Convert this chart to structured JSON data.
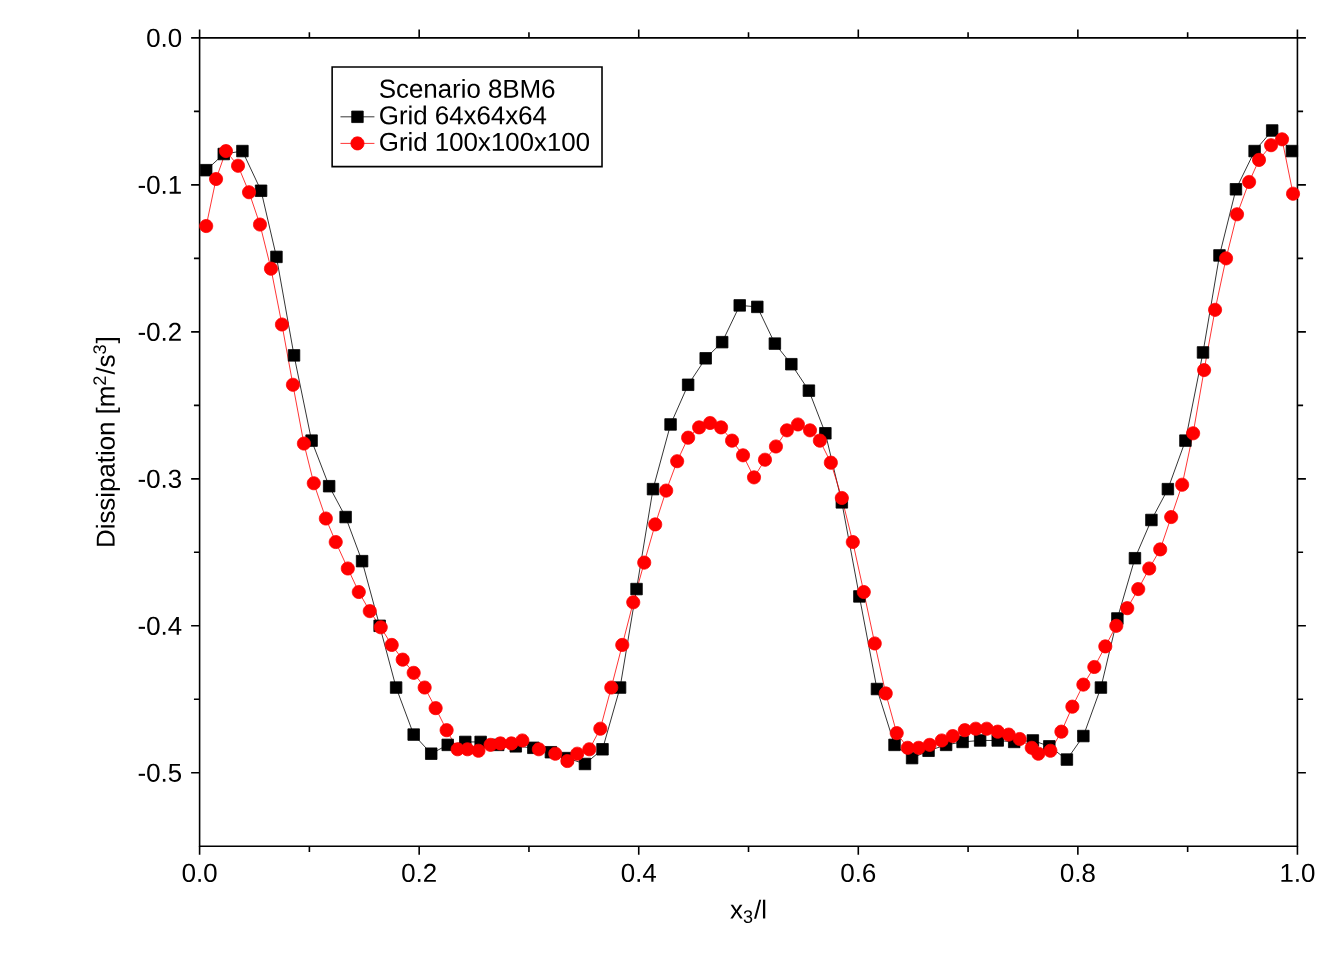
{
  "chart_data": {
    "type": "line",
    "xlabel": "x$_{3}$/l",
    "ylabel": "Dissipation [m$^{2}$/s$^{3}$]",
    "legend_title": "Scenario 8BM6",
    "legend": "top left",
    "grid": false,
    "xlim": [
      0,
      1
    ],
    "ylim": [
      -0.55,
      0
    ],
    "xticks": [
      {
        "value": 0,
        "label": "0.0"
      },
      {
        "value": 0.2,
        "label": "0.2"
      },
      {
        "value": 0.4,
        "label": "0.4"
      },
      {
        "value": 0.6,
        "label": "0.6"
      },
      {
        "value": 0.8,
        "label": "0.8"
      },
      {
        "value": 1,
        "label": "1.0"
      }
    ],
    "yticks": [
      {
        "value": -0.5,
        "label": "-0.5"
      },
      {
        "value": -0.4,
        "label": "-0.4"
      },
      {
        "value": -0.3,
        "label": "-0.3"
      },
      {
        "value": -0.2,
        "label": "-0.2"
      },
      {
        "value": -0.1,
        "label": "-0.1"
      },
      {
        "value": 0,
        "label": "0.0"
      }
    ],
    "series": [
      {
        "name": "Grid 64x64x64",
        "color": "#000000",
        "marker": "square",
        "x": [
          0.006,
          0.022,
          0.039,
          0.056,
          0.07,
          0.086,
          0.102,
          0.118,
          0.133,
          0.148,
          0.164,
          0.179,
          0.195,
          0.211,
          0.226,
          0.242,
          0.256,
          0.272,
          0.288,
          0.304,
          0.32,
          0.335,
          0.351,
          0.367,
          0.383,
          0.398,
          0.413,
          0.429,
          0.445,
          0.461,
          0.476,
          0.492,
          0.508,
          0.524,
          0.539,
          0.555,
          0.57,
          0.585,
          0.601,
          0.617,
          0.633,
          0.649,
          0.664,
          0.68,
          0.695,
          0.711,
          0.727,
          0.742,
          0.759,
          0.774,
          0.79,
          0.805,
          0.821,
          0.836,
          0.852,
          0.867,
          0.882,
          0.898,
          0.914,
          0.929,
          0.944,
          0.961,
          0.977,
          0.995
        ],
        "values": [
          -0.09,
          -0.079,
          -0.077,
          -0.104,
          -0.149,
          -0.216,
          -0.274,
          -0.305,
          -0.326,
          -0.356,
          -0.4,
          -0.442,
          -0.474,
          -0.487,
          -0.481,
          -0.479,
          -0.479,
          -0.481,
          -0.482,
          -0.483,
          -0.486,
          -0.49,
          -0.494,
          -0.484,
          -0.442,
          -0.375,
          -0.307,
          -0.263,
          -0.236,
          -0.218,
          -0.207,
          -0.182,
          -0.183,
          -0.208,
          -0.222,
          -0.24,
          -0.269,
          -0.316,
          -0.38,
          -0.443,
          -0.481,
          -0.49,
          -0.485,
          -0.481,
          -0.479,
          -0.478,
          -0.478,
          -0.479,
          -0.478,
          -0.482,
          -0.491,
          -0.475,
          -0.442,
          -0.395,
          -0.354,
          -0.328,
          -0.307,
          -0.274,
          -0.214,
          -0.148,
          -0.103,
          -0.077,
          -0.063,
          -0.077
        ]
      },
      {
        "name": "Grid 100x100x100",
        "color": "#ff0000",
        "marker": "circle",
        "x": [
          0.006,
          0.015,
          0.024,
          0.035,
          0.045,
          0.055,
          0.065,
          0.075,
          0.085,
          0.095,
          0.104,
          0.115,
          0.124,
          0.135,
          0.145,
          0.155,
          0.165,
          0.175,
          0.185,
          0.195,
          0.205,
          0.215,
          0.225,
          0.235,
          0.244,
          0.254,
          0.265,
          0.274,
          0.284,
          0.294,
          0.309,
          0.324,
          0.335,
          0.344,
          0.355,
          0.365,
          0.375,
          0.385,
          0.395,
          0.405,
          0.415,
          0.425,
          0.435,
          0.445,
          0.455,
          0.465,
          0.475,
          0.485,
          0.495,
          0.505,
          0.515,
          0.525,
          0.535,
          0.545,
          0.556,
          0.565,
          0.575,
          0.585,
          0.595,
          0.605,
          0.615,
          0.625,
          0.635,
          0.645,
          0.655,
          0.665,
          0.676,
          0.686,
          0.697,
          0.707,
          0.717,
          0.727,
          0.737,
          0.747,
          0.758,
          0.764,
          0.775,
          0.785,
          0.795,
          0.805,
          0.815,
          0.825,
          0.835,
          0.845,
          0.855,
          0.865,
          0.875,
          0.885,
          0.895,
          0.905,
          0.915,
          0.925,
          0.935,
          0.945,
          0.956,
          0.965,
          0.976,
          0.986,
          0.996
        ],
        "values": [
          -0.128,
          -0.096,
          -0.077,
          -0.087,
          -0.105,
          -0.127,
          -0.157,
          -0.195,
          -0.236,
          -0.276,
          -0.303,
          -0.327,
          -0.343,
          -0.361,
          -0.377,
          -0.39,
          -0.401,
          -0.413,
          -0.423,
          -0.432,
          -0.442,
          -0.456,
          -0.471,
          -0.484,
          -0.484,
          -0.485,
          -0.481,
          -0.48,
          -0.48,
          -0.478,
          -0.484,
          -0.487,
          -0.492,
          -0.487,
          -0.484,
          -0.47,
          -0.442,
          -0.413,
          -0.384,
          -0.357,
          -0.331,
          -0.308,
          -0.288,
          -0.272,
          -0.265,
          -0.262,
          -0.265,
          -0.274,
          -0.284,
          -0.299,
          -0.287,
          -0.278,
          -0.267,
          -0.263,
          -0.267,
          -0.274,
          -0.289,
          -0.313,
          -0.343,
          -0.377,
          -0.412,
          -0.446,
          -0.473,
          -0.483,
          -0.483,
          -0.481,
          -0.478,
          -0.475,
          -0.471,
          -0.47,
          -0.47,
          -0.472,
          -0.474,
          -0.477,
          -0.483,
          -0.487,
          -0.485,
          -0.472,
          -0.455,
          -0.44,
          -0.428,
          -0.414,
          -0.4,
          -0.388,
          -0.375,
          -0.361,
          -0.348,
          -0.326,
          -0.304,
          -0.269,
          -0.226,
          -0.185,
          -0.15,
          -0.12,
          -0.098,
          -0.083,
          -0.073,
          -0.069,
          -0.106
        ]
      }
    ]
  }
}
